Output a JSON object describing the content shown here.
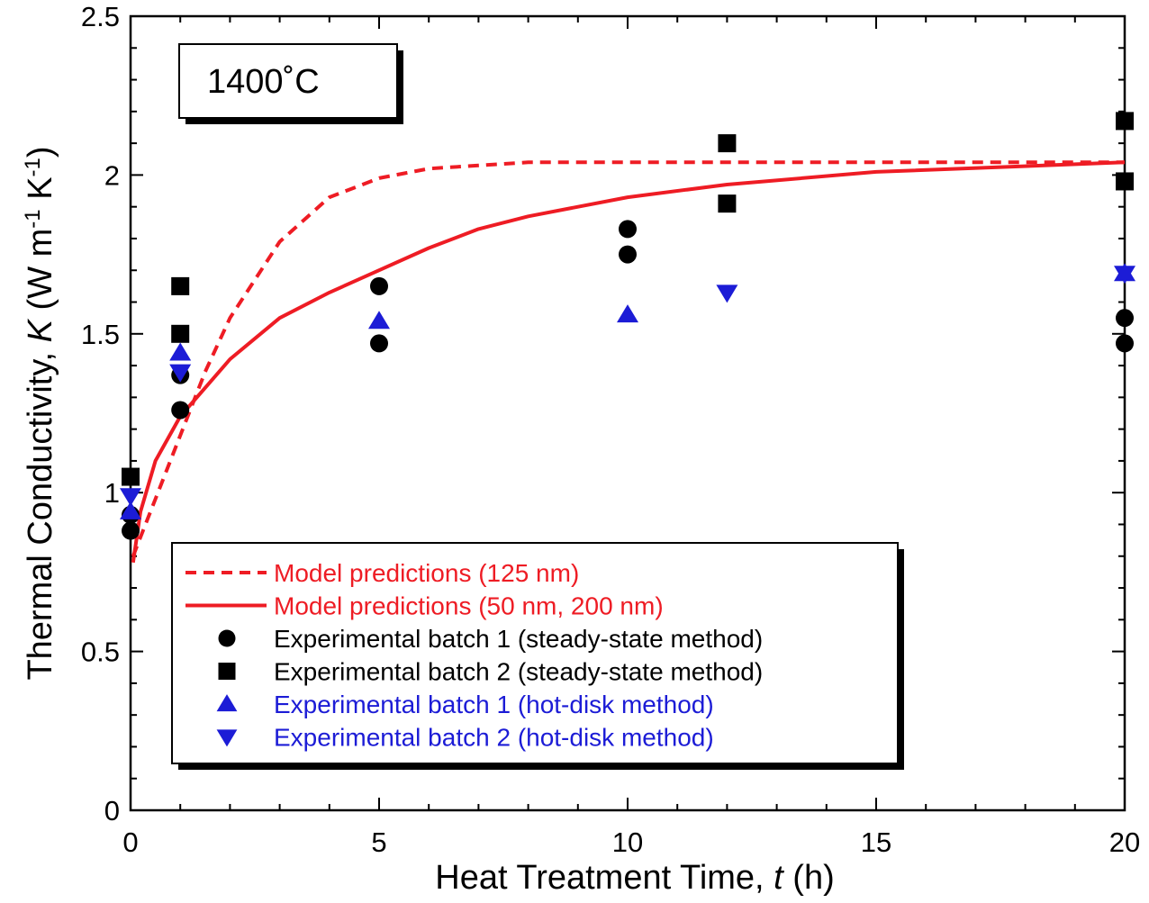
{
  "chart_data": {
    "type": "scatter",
    "annotation": "1400˚C",
    "xlabel": {
      "text": "Heat Treatment Time, ",
      "var": "t",
      "unit": " (h)"
    },
    "ylabel": {
      "prefix": "Thermal Conductivity, ",
      "var": "K",
      "unit_open": " (W m",
      "sup1": "-1",
      "unit_mid": " K",
      "sup2": "-1",
      "unit_close": ")"
    },
    "xlim": [
      0,
      20
    ],
    "ylim": [
      0,
      2.5
    ],
    "x_ticks": [
      0,
      5,
      10,
      15,
      20
    ],
    "y_ticks": [
      0,
      0.5,
      1,
      1.5,
      2,
      2.5
    ],
    "x_tick_labels": [
      "0",
      "5",
      "10",
      "15",
      "20"
    ],
    "y_tick_labels": [
      "0",
      "0.5",
      "1",
      "1.5",
      "2",
      "2.5"
    ],
    "x_minor_step": 1,
    "y_minor_step": 0.1,
    "grid": false,
    "legend_position": "bottom-center",
    "colors": {
      "red": "#ee1c24",
      "black": "#000000",
      "blue": "#1c1cd6"
    },
    "series": [
      {
        "key": "model_125",
        "name": "Model predictions (125 nm)",
        "kind": "line",
        "style": "dashed",
        "color": "#ee1c24",
        "x": [
          0.05,
          0.2,
          0.5,
          1,
          1.5,
          2,
          3,
          4,
          5,
          6,
          7,
          8,
          10,
          12,
          15,
          20
        ],
        "y": [
          0.8,
          0.86,
          0.98,
          1.18,
          1.38,
          1.55,
          1.79,
          1.93,
          1.99,
          2.02,
          2.03,
          2.04,
          2.04,
          2.04,
          2.04,
          2.04
        ]
      },
      {
        "key": "model_50_200",
        "name": "Model predictions (50 nm, 200 nm)",
        "kind": "line",
        "style": "solid",
        "color": "#ee1c24",
        "x": [
          0.05,
          0.2,
          0.5,
          1,
          1.5,
          2,
          3,
          4,
          5,
          6,
          7,
          8,
          10,
          12,
          15,
          20
        ],
        "y": [
          0.78,
          0.94,
          1.1,
          1.24,
          1.33,
          1.42,
          1.55,
          1.63,
          1.7,
          1.77,
          1.83,
          1.87,
          1.93,
          1.97,
          2.01,
          2.04
        ]
      },
      {
        "key": "batch1_steady",
        "name": "Experimental batch 1 (steady-state method)",
        "kind": "marker",
        "marker": "circle",
        "color": "#000000",
        "x": [
          0,
          0,
          1,
          1,
          5,
          5,
          10,
          10,
          20,
          20
        ],
        "y": [
          0.88,
          0.93,
          1.26,
          1.37,
          1.65,
          1.47,
          1.83,
          1.75,
          1.55,
          1.47
        ]
      },
      {
        "key": "batch2_steady",
        "name": "Experimental batch 2 (steady-state method)",
        "kind": "marker",
        "marker": "square",
        "color": "#000000",
        "x": [
          0,
          1,
          1,
          12,
          12,
          20,
          20
        ],
        "y": [
          1.05,
          1.65,
          1.5,
          2.1,
          1.91,
          2.17,
          1.98
        ]
      },
      {
        "key": "batch1_hotdisk",
        "name": "Experimental batch 1 (hot-disk method)",
        "kind": "marker",
        "marker": "triangle-up",
        "color": "#1c1cd6",
        "x": [
          0,
          1,
          5,
          10,
          20
        ],
        "y": [
          0.94,
          1.44,
          1.54,
          1.56,
          1.69
        ]
      },
      {
        "key": "batch2_hotdisk",
        "name": "Experimental batch 2 (hot-disk method)",
        "kind": "marker",
        "marker": "triangle-down",
        "color": "#1c1cd6",
        "x": [
          0,
          1,
          12,
          20
        ],
        "y": [
          0.99,
          1.38,
          1.63,
          1.69
        ]
      }
    ]
  }
}
